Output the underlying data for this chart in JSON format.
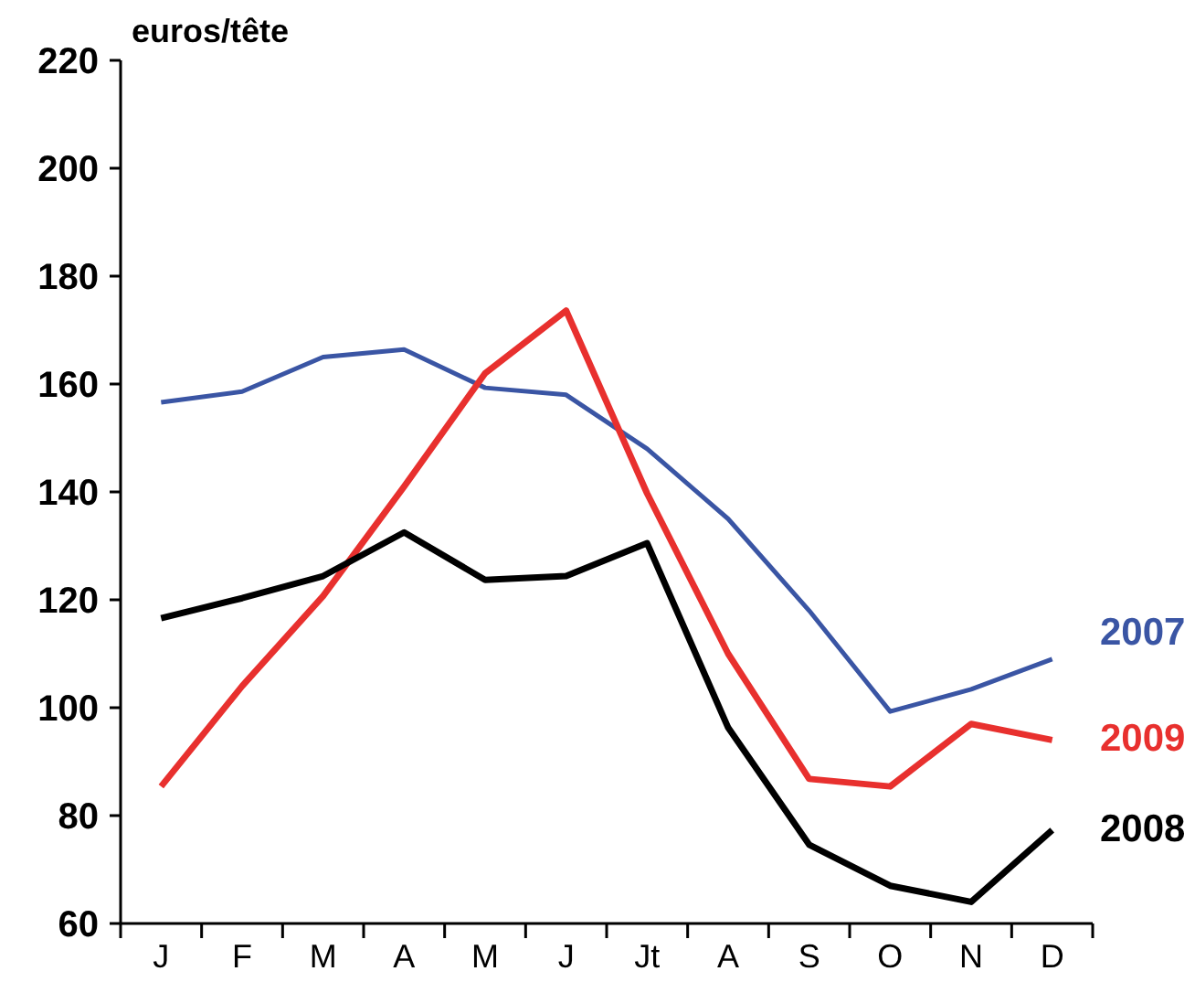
{
  "chart_data": {
    "type": "line",
    "ylabel": "euros/tête",
    "categories": [
      "J",
      "F",
      "M",
      "A",
      "M",
      "J",
      "Jt",
      "A",
      "S",
      "O",
      "N",
      "D"
    ],
    "ylim": [
      60,
      220
    ],
    "yticks": [
      60,
      80,
      100,
      120,
      140,
      160,
      180,
      200,
      220
    ],
    "grid": false,
    "legend": false,
    "marker": "none",
    "line_style": "solid",
    "series": [
      {
        "name": "2007",
        "color": "#3a55a4",
        "values": [
          156.6,
          158.6,
          165,
          166.4,
          159.3,
          158,
          148,
          135,
          118,
          99.3,
          103.4,
          109
        ]
      },
      {
        "name": "2009",
        "color": "#e8302e",
        "values": [
          85.4,
          104,
          120.7,
          141,
          162,
          173.6,
          139.7,
          110,
          86.8,
          85.4,
          97,
          94
        ]
      },
      {
        "name": "2008",
        "color": "#000000",
        "values": [
          116.6,
          120.3,
          124.4,
          132.5,
          123.7,
          124.4,
          130.5,
          96.3,
          74.6,
          67,
          64,
          77.3
        ]
      }
    ]
  }
}
